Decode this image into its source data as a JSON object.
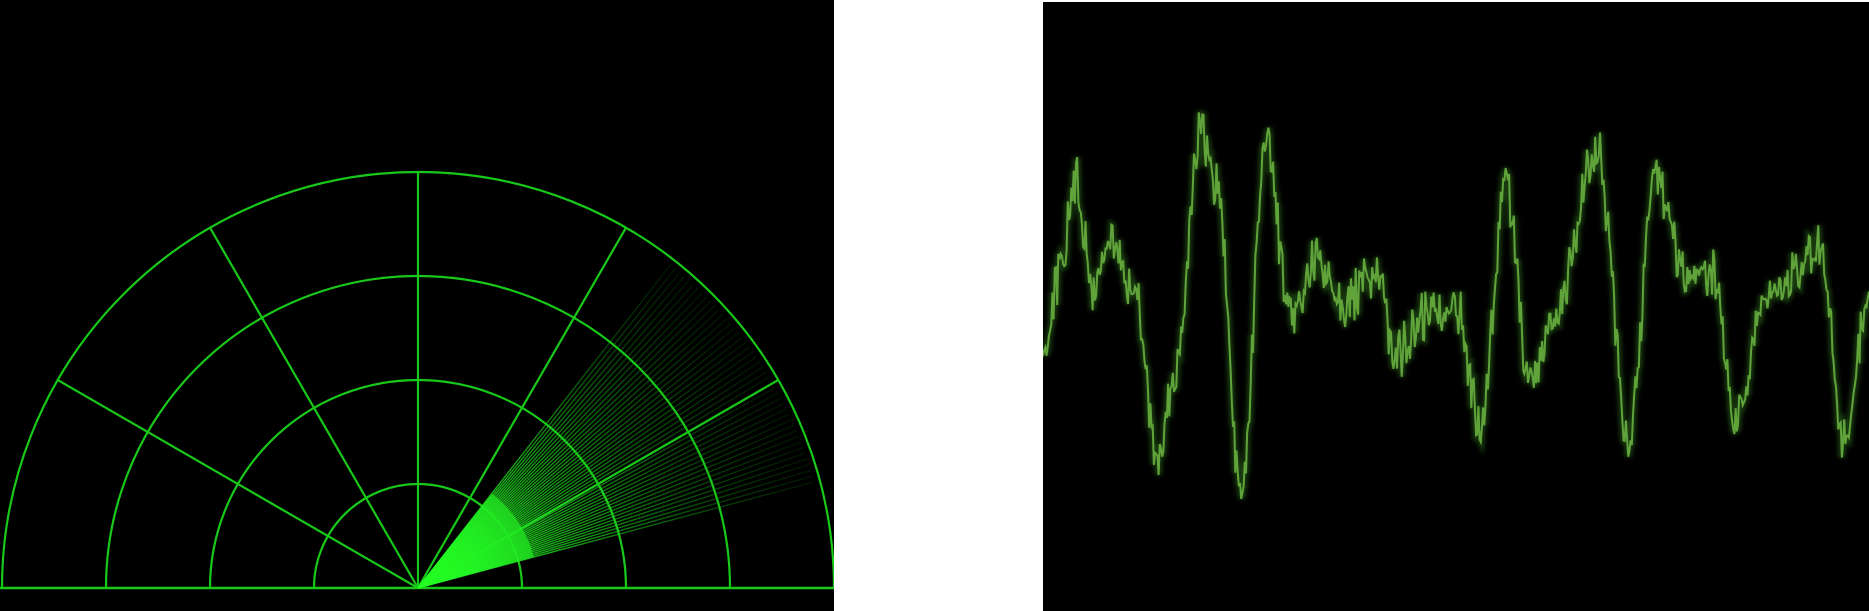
{
  "radar": {
    "line_color": "#19c919",
    "sweep_color": "#33e633",
    "background": "#000000",
    "rings": 4,
    "spokes_deg": [
      30,
      60,
      90,
      120,
      150
    ],
    "sweep": {
      "from_deg": 15,
      "to_deg": 52,
      "lines": 44
    }
  },
  "waveform": {
    "line_color": "#5fa33a",
    "glow_color": "#2f6a1c",
    "background": "#000000",
    "samples": 700
  }
}
